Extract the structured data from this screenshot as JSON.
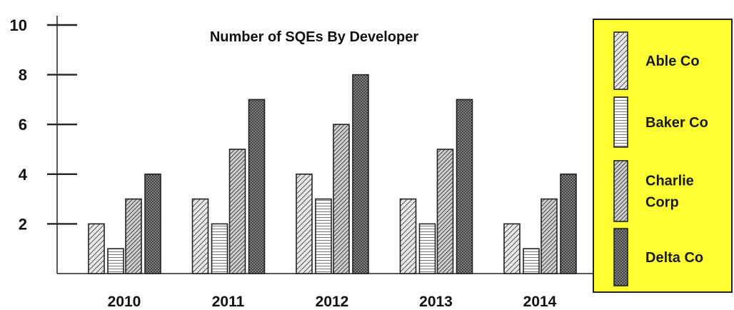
{
  "chart_data": {
    "type": "bar",
    "title": "Number of SQEs By Developer",
    "xlabel": "",
    "ylabel": "",
    "categories": [
      "2010",
      "2011",
      "2012",
      "2013",
      "2014"
    ],
    "ylim": [
      0,
      10
    ],
    "yticks": [
      "2",
      "4",
      "6",
      "8",
      "10"
    ],
    "series": [
      {
        "name": "Able Co",
        "values": [
          2,
          3,
          4,
          3,
          2
        ],
        "pattern": "diagonal"
      },
      {
        "name": "Baker Co",
        "values": [
          1,
          2,
          3,
          2,
          1
        ],
        "pattern": "horizontal"
      },
      {
        "name": "Charlie Corp",
        "values": [
          3,
          5,
          6,
          5,
          3
        ],
        "pattern": "diagonal-dense"
      },
      {
        "name": "Delta Co",
        "values": [
          4,
          7,
          8,
          7,
          4
        ],
        "pattern": "crosshatch"
      }
    ],
    "legend": {
      "position": "right",
      "background": "#ffff33",
      "items": [
        "Able Co",
        "Baker Co",
        "Charlie\nCorp",
        "Delta Co"
      ]
    },
    "grid": false
  }
}
